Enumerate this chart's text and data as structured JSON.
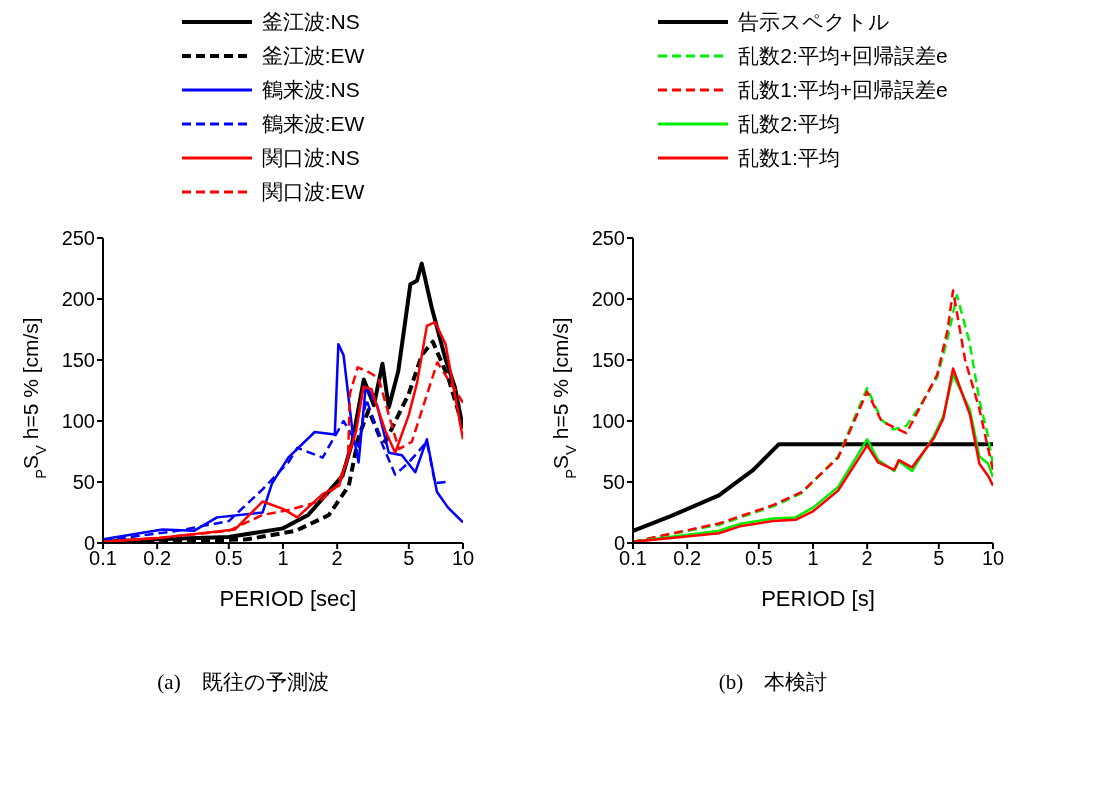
{
  "chart_data": [
    {
      "type": "line",
      "title": "(a)　既往の予測波",
      "xlabel": "PERIOD [sec]",
      "ylabel": "$_{P}$S$_{V}$ h=5 % [cm/s]",
      "log": "x",
      "xlim": [
        0.1,
        10
      ],
      "xticks": [
        0.1,
        0.2,
        0.5,
        1,
        2,
        5,
        10
      ],
      "ylim": [
        0,
        250
      ],
      "yticks": [
        0,
        50,
        100,
        150,
        200,
        250
      ],
      "grid": false,
      "legend": "top",
      "marker": "none",
      "series": [
        {
          "name": "釜江波:NS",
          "color": "#000000",
          "line_style": "solid",
          "x": [
            0.1,
            0.2,
            0.5,
            1.0,
            1.38,
            2.14,
            2.43,
            2.81,
            3.2,
            3.57,
            3.87,
            4.37,
            5.1,
            5.55,
            5.9,
            6.7,
            7.95,
            9.0,
            10
          ],
          "values": [
            1,
            3,
            5,
            12,
            23,
            55,
            83,
            134,
            113,
            147,
            111,
            141,
            212,
            215,
            229,
            193,
            152,
            128,
            94
          ]
        },
        {
          "name": "釜江波:EW",
          "color": "#000000",
          "line_style": "dashed",
          "x": [
            0.1,
            0.2,
            0.63,
            1.18,
            1.8,
            2.32,
            2.63,
            2.99,
            3.47,
            3.7,
            4.99,
            5.9,
            6.8,
            8.3,
            10
          ],
          "values": [
            1,
            1,
            3,
            10,
            23,
            47,
            87,
            109,
            86,
            83,
            122,
            154,
            165,
            135,
            95
          ]
        },
        {
          "name": "鶴来波:NS",
          "color": "#0000ff",
          "line_style": "solid",
          "x": [
            0.1,
            0.214,
            0.32,
            0.43,
            0.77,
            0.87,
            1.07,
            1.5,
            1.94,
            2.03,
            2.17,
            2.43,
            2.63,
            2.88,
            3.33,
            3.87,
            4.58,
            5.43,
            6.3,
            7.16,
            8.26,
            10
          ],
          "values": [
            3,
            11,
            10,
            21,
            25,
            49,
            70,
            91,
            89,
            163,
            154,
            92,
            66,
            128,
            113,
            74,
            72,
            58,
            85,
            42,
            29,
            17
          ]
        },
        {
          "name": "鶴来波:EW",
          "color": "#0000ff",
          "line_style": "dashed",
          "x": [
            0.1,
            0.26,
            0.5,
            0.77,
            1.07,
            1.2,
            1.66,
            2.17,
            2.63,
            2.9,
            3.56,
            4.2,
            5.0,
            6.3,
            7.0,
            8.0
          ],
          "values": [
            2,
            10,
            18,
            44,
            66,
            78,
            70,
            100,
            79,
            118,
            81,
            56,
            66,
            83,
            49,
            50
          ]
        },
        {
          "name": "関口波:NS",
          "color": "#ff0000",
          "line_style": "solid",
          "x": [
            0.1,
            0.2,
            0.54,
            0.77,
            1.0,
            1.2,
            1.66,
            2.05,
            2.55,
            2.8,
            3.1,
            3.7,
            4.2,
            5.0,
            5.55,
            6.3,
            7.0,
            8.0,
            9.0,
            10
          ],
          "values": [
            1,
            4,
            11,
            34,
            28,
            21,
            40,
            47,
            92,
            128,
            126,
            92,
            74,
            105,
            131,
            178,
            181,
            163,
            122,
            85
          ]
        },
        {
          "name": "関口波:EW",
          "color": "#ff0000",
          "line_style": "dashed",
          "x": [
            0.1,
            0.2,
            0.5,
            0.77,
            1.07,
            1.6,
            2.0,
            2.3,
            2.35,
            2.6,
            3.0,
            3.4,
            3.87,
            4.4,
            5.2,
            6.1,
            7.2,
            8.2,
            10
          ],
          "values": [
            1,
            4,
            10,
            23,
            27,
            34,
            47,
            70,
            122,
            144,
            140,
            135,
            105,
            77,
            83,
            115,
            148,
            135,
            115
          ]
        }
      ]
    },
    {
      "type": "line",
      "title": "(b)　本検討",
      "xlabel": "PERIOD [s]",
      "ylabel": "$_{P}$S$_{V}$ h=5 % [cm/s]",
      "log": "x",
      "xlim": [
        0.1,
        10
      ],
      "xticks": [
        0.1,
        0.2,
        0.5,
        1,
        2,
        5,
        10
      ],
      "ylim": [
        0,
        250
      ],
      "yticks": [
        0,
        50,
        100,
        150,
        200,
        250
      ],
      "grid": false,
      "legend": "top",
      "marker": "none",
      "series": [
        {
          "name": "告示スペクトル",
          "color": "#000000",
          "line_style": "solid",
          "x": [
            0.1,
            0.162,
            0.3,
            0.466,
            0.647,
            10
          ],
          "values": [
            10,
            22,
            39,
            60,
            81,
            81
          ]
        },
        {
          "name": "乱数2:平均+回帰誤差e",
          "color": "#00ee00",
          "line_style": "dashed",
          "x": [
            0.1,
            0.3,
            0.6,
            0.87,
            1.38,
            2.0,
            2.4,
            2.8,
            3.3,
            3.8,
            4.9,
            5.6,
            6.3,
            7.4,
            8.4,
            9.3,
            10
          ],
          "values": [
            1,
            15,
            30,
            41,
            71,
            127,
            101,
            93,
            96,
            109,
            136,
            168,
            203,
            165,
            117,
            90,
            64
          ]
        },
        {
          "name": "乱数1:平均+回帰誤差e",
          "color": "#ff0000",
          "line_style": "dashed",
          "x": [
            0.1,
            0.3,
            0.6,
            0.87,
            1.38,
            2.0,
            2.4,
            2.8,
            3.3,
            3.8,
            4.9,
            5.6,
            6.0,
            7.0,
            8.4,
            9.3,
            10
          ],
          "values": [
            1,
            16,
            31,
            42,
            70,
            124,
            100,
            95,
            90,
            107,
            138,
            175,
            207,
            150,
            110,
            80,
            60
          ]
        },
        {
          "name": "乱数2:平均",
          "color": "#00ee00",
          "line_style": "solid",
          "x": [
            0.1,
            0.3,
            0.4,
            0.6,
            0.8,
            1.0,
            1.38,
            2.0,
            2.3,
            2.83,
            3.0,
            3.55,
            4.7,
            5.3,
            6.0,
            7.45,
            8.4,
            9.4,
            10
          ],
          "values": [
            1,
            10,
            16,
            20,
            21,
            29,
            46,
            85,
            68,
            59,
            67,
            59,
            88,
            104,
            138,
            109,
            71,
            65,
            54
          ]
        },
        {
          "name": "乱数1:平均",
          "color": "#ff0000",
          "line_style": "solid",
          "x": [
            0.1,
            0.3,
            0.4,
            0.6,
            0.8,
            1.0,
            1.38,
            2.0,
            2.3,
            2.83,
            3.0,
            3.55,
            4.7,
            5.3,
            6.0,
            7.45,
            8.4,
            9.4,
            10
          ],
          "values": [
            1,
            8,
            14,
            18,
            19,
            26,
            43,
            80,
            66,
            60,
            68,
            62,
            86,
            102,
            143,
            105,
            65,
            55,
            47
          ]
        }
      ]
    }
  ]
}
